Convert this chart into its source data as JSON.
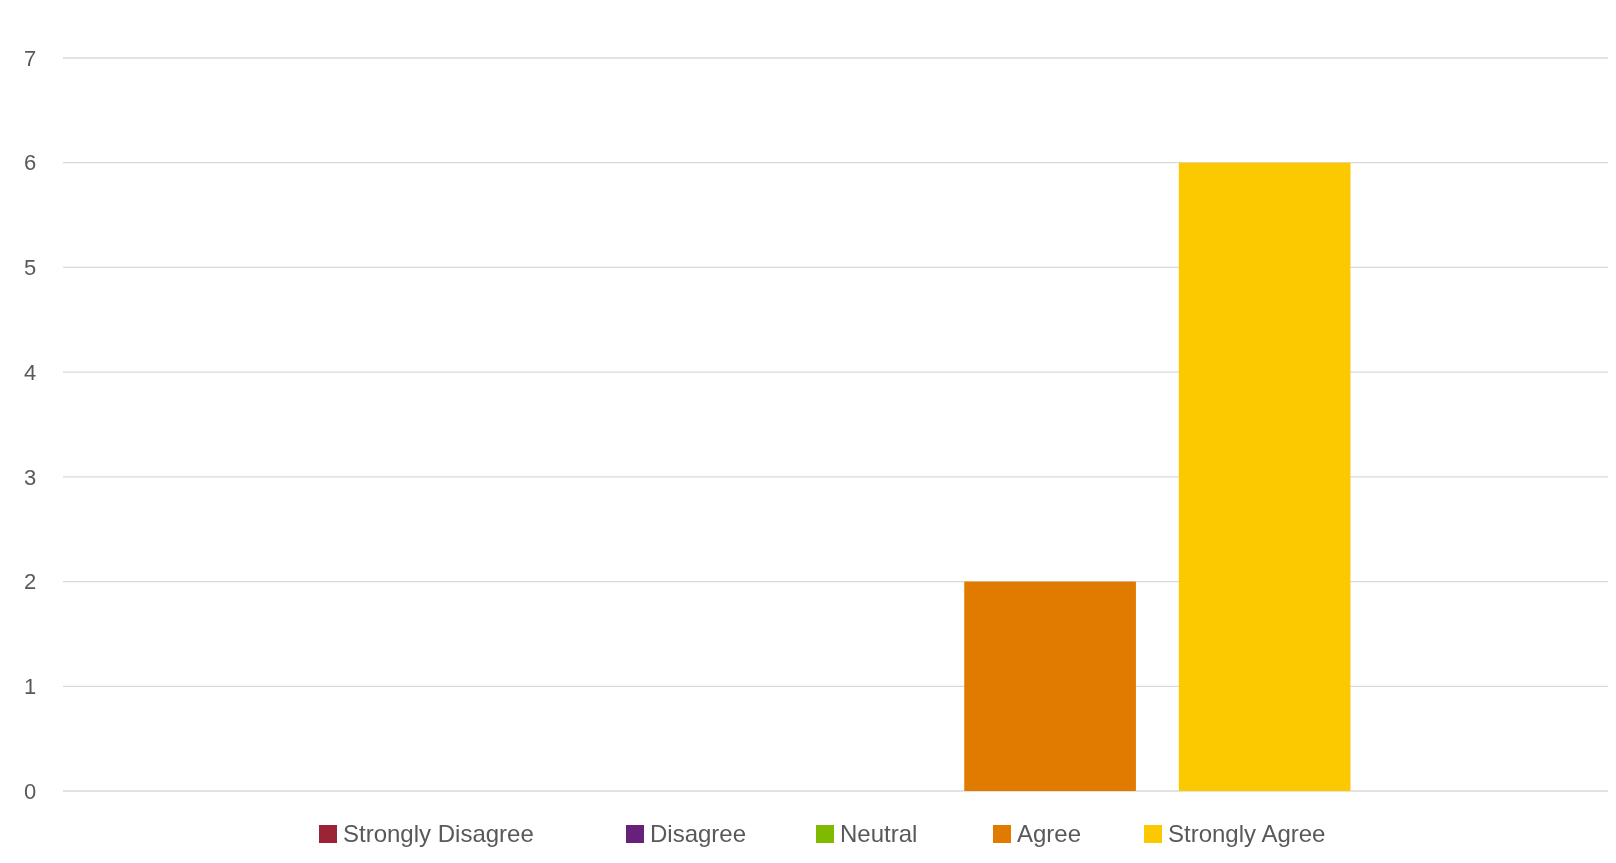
{
  "chart_data": {
    "type": "bar",
    "categories": [
      null
    ],
    "series": [
      {
        "name": "Strongly Disagree",
        "color": "#9b2335",
        "values": [
          0
        ]
      },
      {
        "name": "Disagree",
        "color": "#68217a",
        "values": [
          0
        ]
      },
      {
        "name": "Neutral",
        "color": "#7fba00",
        "values": [
          0
        ]
      },
      {
        "name": "Agree",
        "color": "#e07b00",
        "values": [
          2
        ]
      },
      {
        "name": "Strongly Agree",
        "color": "#fcc900",
        "values": [
          6
        ]
      }
    ],
    "ylim": [
      0,
      7
    ],
    "yticks": [
      0,
      1,
      2,
      3,
      4,
      5,
      6,
      7
    ],
    "grid": "y",
    "legend": "bottom"
  }
}
